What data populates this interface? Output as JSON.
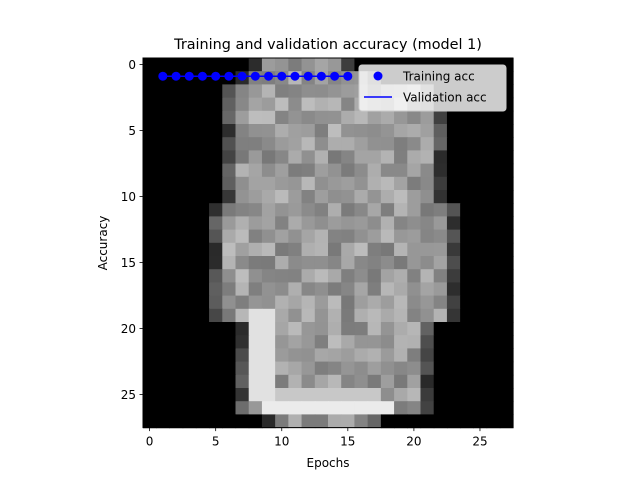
{
  "chart_data": {
    "type": "scatter",
    "title": "Training and validation accuracy (model 1)",
    "xlabel": "Epochs",
    "ylabel": "Accuracy",
    "xlim": [
      -0.5,
      27.5
    ],
    "ylim": [
      27.5,
      -0.5
    ],
    "y_axis_inverted": true,
    "xticks": [
      0,
      5,
      10,
      15,
      20,
      25
    ],
    "yticks": [
      0,
      5,
      10,
      15,
      20,
      25
    ],
    "background_image": "28x28 grayscale image of a shirt / garment (colormap gray)",
    "legend": {
      "placement": "top-right"
    },
    "series": [
      {
        "name": "Training acc",
        "marker": "o",
        "color": "#0000ff",
        "x": [
          1,
          2,
          3,
          4,
          5,
          6,
          7,
          8,
          9,
          10,
          11,
          12,
          13,
          14,
          15
        ],
        "y": [
          0.88,
          0.88,
          0.88,
          0.88,
          0.88,
          0.88,
          0.88,
          0.88,
          0.88,
          0.88,
          0.88,
          0.88,
          0.88,
          0.88,
          0.88
        ]
      },
      {
        "name": "Validation acc",
        "line": "-",
        "color": "#0000ff",
        "x": [
          1,
          2,
          3,
          4,
          5,
          6,
          7,
          8,
          9,
          10,
          11,
          12,
          13,
          14,
          15
        ],
        "y": [
          0.88,
          0.88,
          0.88,
          0.88,
          0.88,
          0.88,
          0.88,
          0.88,
          0.88,
          0.88,
          0.88,
          0.88,
          0.88,
          0.88,
          0.88
        ]
      }
    ]
  }
}
